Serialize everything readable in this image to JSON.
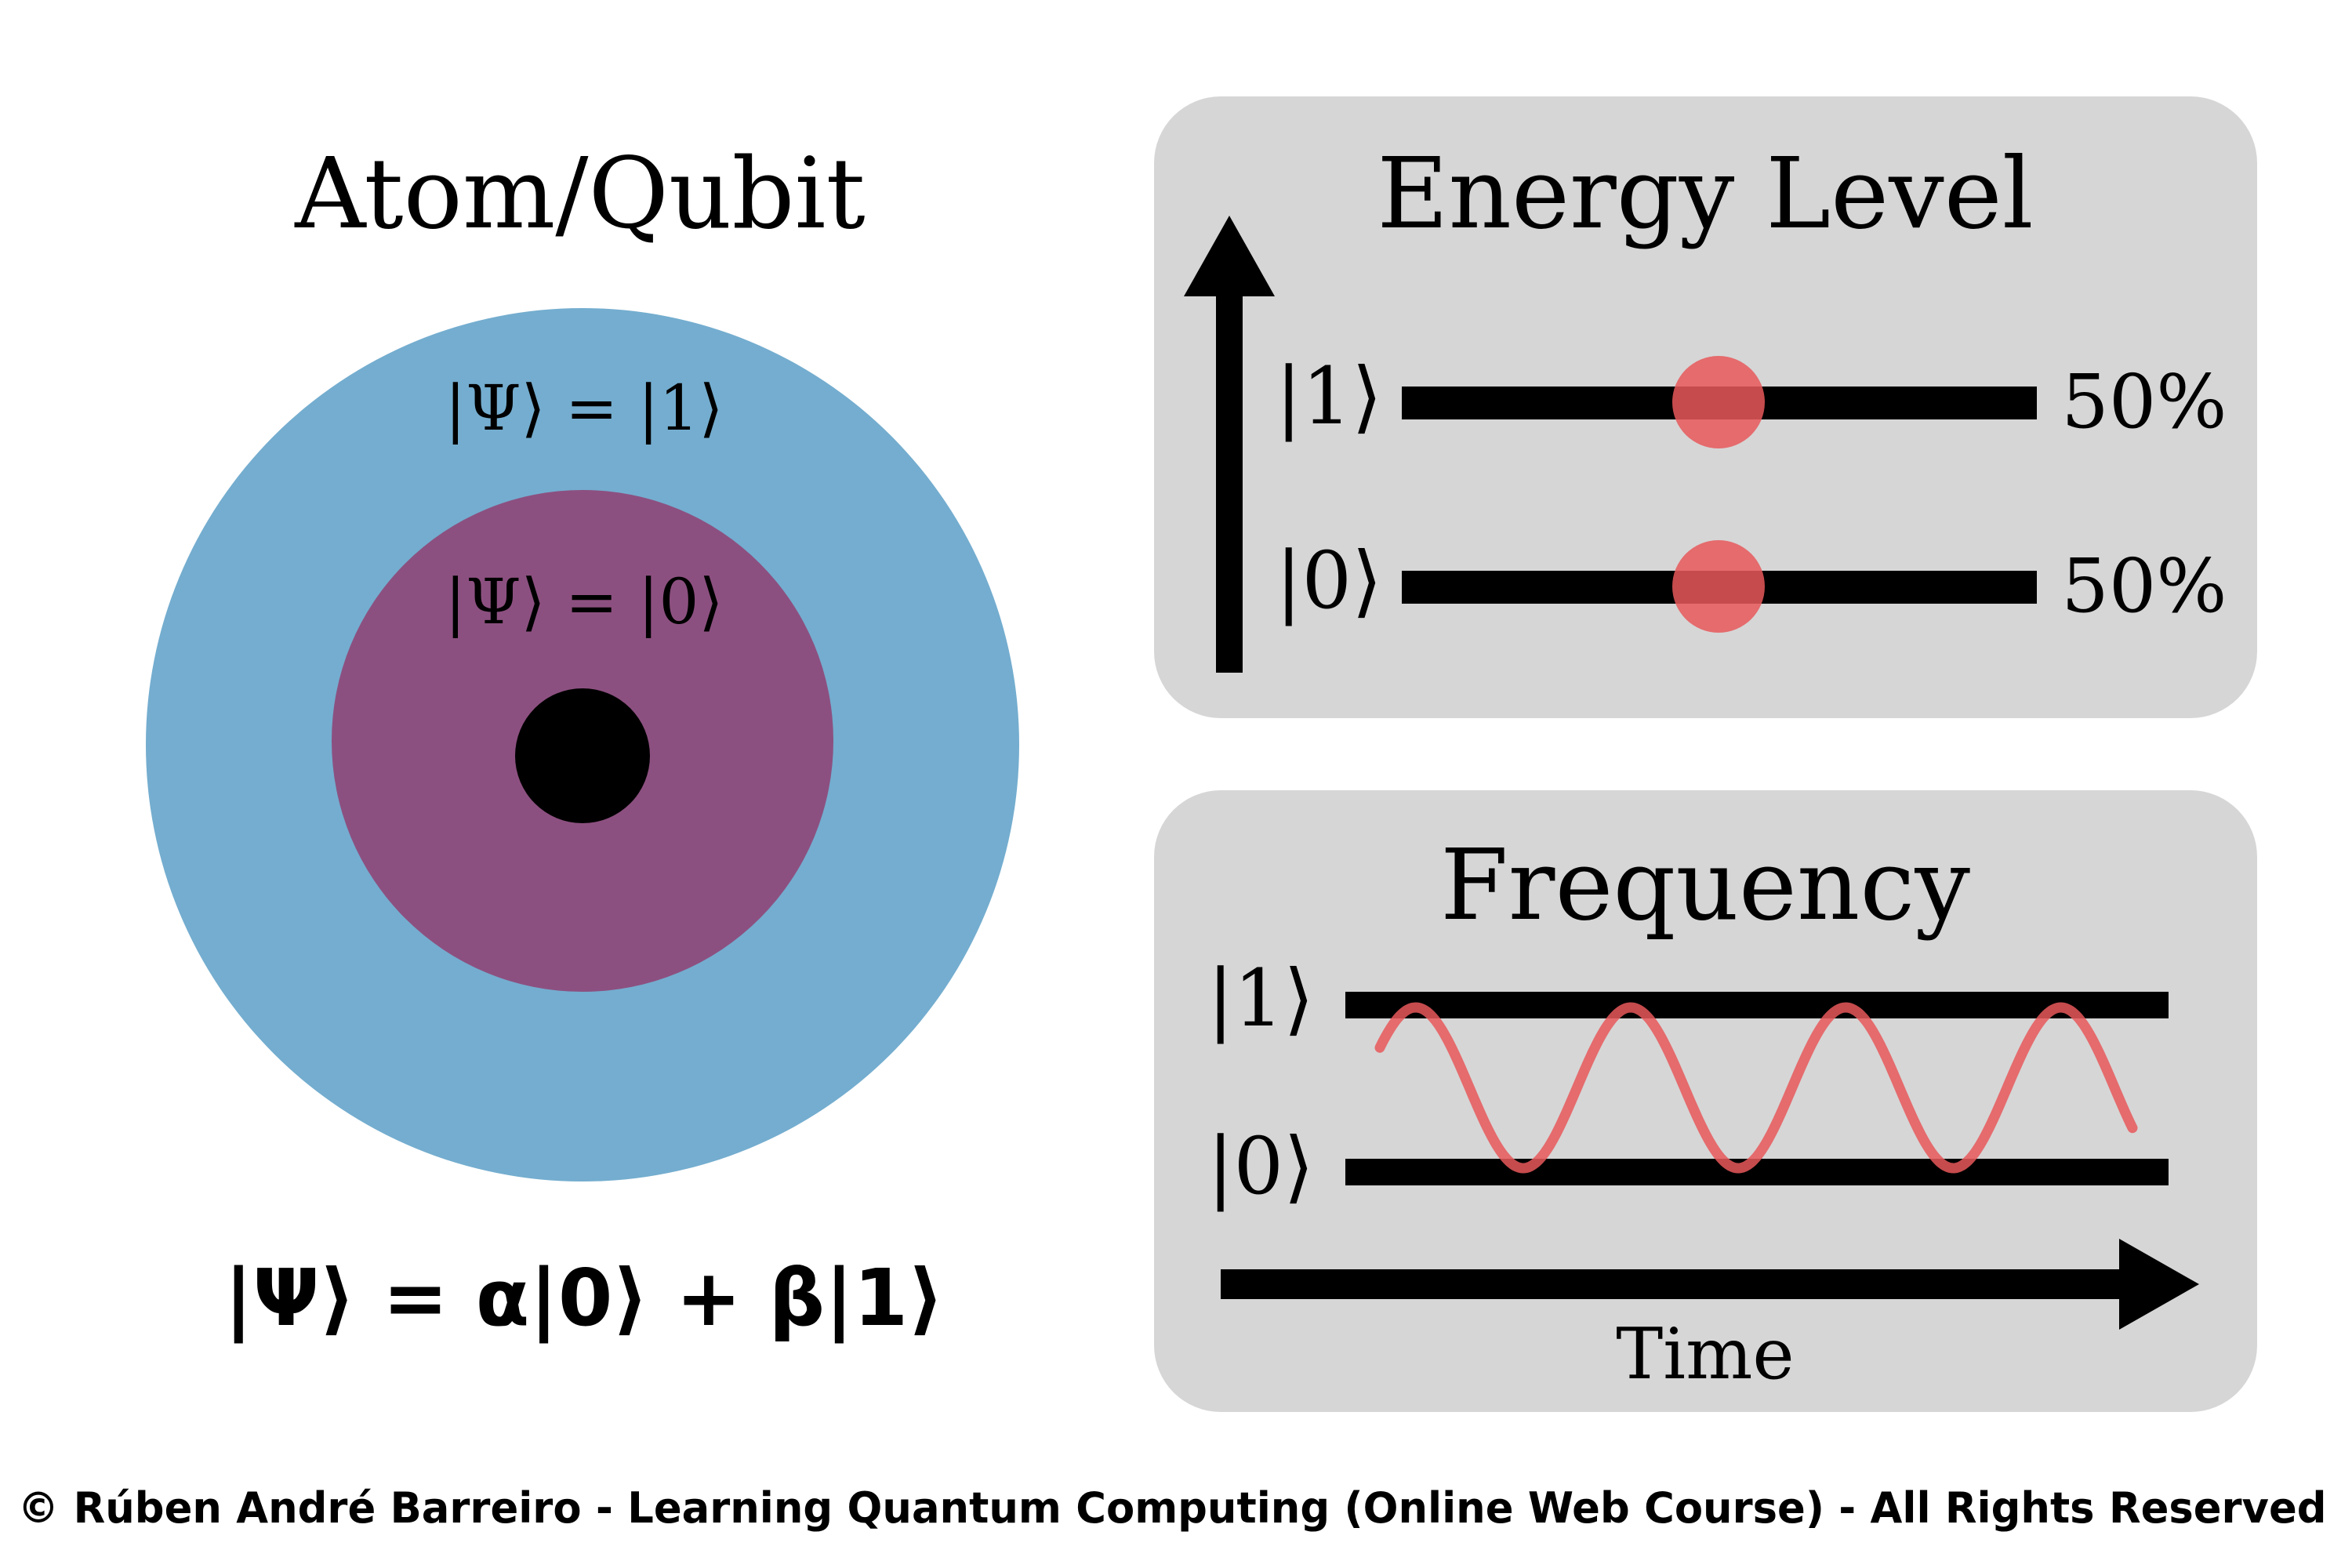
{
  "atom": {
    "title": "Atom/Qubit",
    "outer_label": "|Ψ⟩ = |1⟩",
    "inner_label": "|Ψ⟩ = |0⟩",
    "equation": "|Ψ⟩ = α|0⟩ + β|1⟩",
    "colors": {
      "outer_orbit": "#74adcf",
      "inner_orbit": "#8c5080",
      "nucleus": "#000000"
    }
  },
  "energy": {
    "title": "Energy Level",
    "level_1_label": "|1⟩",
    "level_0_label": "|0⟩",
    "level_1_percent": "50%",
    "level_0_percent": "50%",
    "probability_1": 0.5,
    "probability_0": 0.5,
    "colors": {
      "panel": "#d6d6d6",
      "marker": "#e8585a"
    }
  },
  "frequency": {
    "title": "Frequency",
    "level_1_label": "|1⟩",
    "level_0_label": "|0⟩",
    "axis_label": "Time",
    "colors": {
      "panel": "#d6d6d6",
      "wave": "#e8585a"
    }
  },
  "footer": {
    "copyright": "© Rúben André Barreiro - Learning Quantum Computing (Online Web Course) - All Rights Reserved"
  }
}
